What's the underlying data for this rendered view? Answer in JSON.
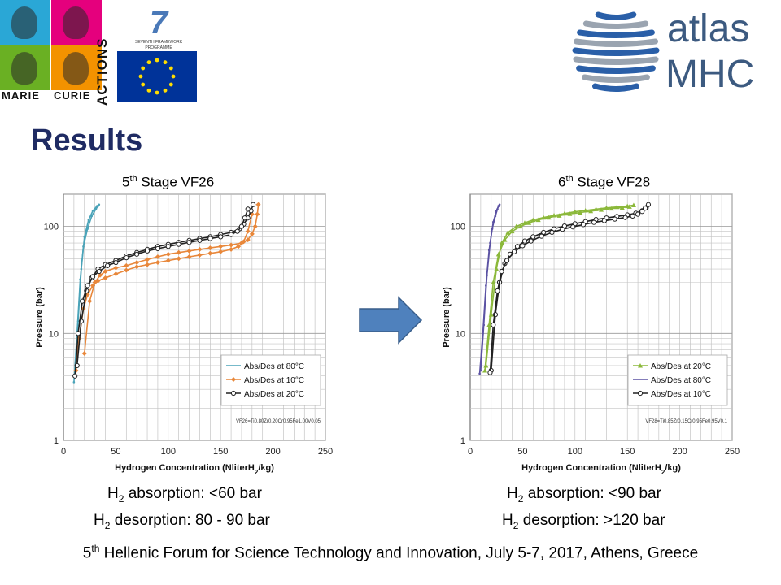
{
  "header": {
    "left_logo": {
      "words": [
        "MARIE",
        "CURIE",
        "ACTIONS"
      ],
      "fp7_caption": [
        "SEVENTH FRAMEWORK",
        "PROGRAMME"
      ],
      "tile_colors": [
        "#2aa7d6",
        "#e5007d",
        "#6ab023",
        "#f39200"
      ],
      "eu_blue": "#003399",
      "eu_star": "#ffdd00"
    },
    "right_logo": {
      "line1": "atlas",
      "line2": "MHC",
      "ring_colors": [
        "#2a5fa8",
        "#9aa4b0"
      ]
    }
  },
  "slide": {
    "title": "Results"
  },
  "left_panel": {
    "title_prefix": "5",
    "title_sup": "th",
    "title_suffix": " Stage VF26",
    "caption1": {
      "pre": "H",
      "sub": "2",
      "post": " absorption: <60 bar"
    },
    "caption2": {
      "pre": "H",
      "sub": "2",
      "post": " desorption: 80 - 90 bar"
    }
  },
  "right_panel": {
    "title_prefix": "6",
    "title_sup": "th",
    "title_suffix": " Stage VF28",
    "caption1": {
      "pre": "H",
      "sub": "2",
      "post": " absorption: <90 bar"
    },
    "caption2": {
      "pre": "H",
      "sub": "2",
      "post": " desorption: >120 bar"
    }
  },
  "arrow": {
    "color": "#4f81bd",
    "stroke": "#385d8a"
  },
  "footer": {
    "prefix": "5",
    "sup": "th",
    "text": " Hellenic Forum for Science Technology and Innovation, July 5-7, 2017, Athens, Greece"
  },
  "chart_data": [
    {
      "type": "scatter",
      "title": "5th Stage VF26",
      "xlabel_parts": {
        "pre": "Hydrogen Concentration (NliterH",
        "sub": "2",
        "post": "/kg)"
      },
      "ylabel": "Pressure (bar)",
      "xlim": [
        0,
        250
      ],
      "ylim": [
        1,
        200
      ],
      "yscale": "log",
      "xticks": [
        0,
        50,
        100,
        150,
        200,
        250
      ],
      "yticks": [
        1,
        10,
        100
      ],
      "grid": true,
      "legend_position": "bottom-right",
      "annotation": "VF26=Ti0.80Zr0.20Cr0.95Fe1.00V0.05",
      "series": [
        {
          "name": "Abs/Des at 80°C",
          "color": "#4aa3b8",
          "marker": "line",
          "absorption": {
            "x": [
              11,
              14,
              17,
              20,
              24,
              28,
              32,
              34
            ],
            "y": [
              4.5,
              13,
              40,
              80,
              115,
              140,
              155,
              160
            ]
          },
          "desorption": {
            "x": [
              10,
              13,
              16,
              19,
              23,
              27,
              31,
              33
            ],
            "y": [
              3.5,
              10,
              32,
              65,
              95,
              125,
              145,
              155
            ]
          }
        },
        {
          "name": "Abs/Des at 10°C",
          "color": "#e8873a",
          "marker": "diamond",
          "absorption": {
            "x": [
              20,
              25,
              30,
              35,
              40,
              50,
              60,
              70,
              80,
              90,
              100,
              110,
              120,
              130,
              140,
              150,
              160,
              170,
              176,
              180,
              183,
              185,
              186
            ],
            "y": [
              6.5,
              20,
              30,
              35,
              38,
              41,
              43,
              46,
              49,
              52,
              55,
              57,
              59,
              61,
              63,
              65,
              67,
              70,
              75,
              85,
              100,
              130,
              160
            ]
          },
          "desorption": {
            "x": [
              12,
              15,
              19,
              23,
              28,
              33,
              40,
              50,
              60,
              70,
              80,
              90,
              100,
              110,
              120,
              130,
              140,
              150,
              160,
              167,
              172,
              176,
              180
            ],
            "y": [
              4.5,
              9,
              17,
              23,
              28,
              31,
              33,
              36,
              39,
              42,
              44,
              46,
              48,
              50,
              52,
              54,
              56,
              58,
              61,
              65,
              72,
              90,
              130
            ]
          }
        },
        {
          "name": "Abs/Des at 20°C",
          "color": "#222222",
          "marker": "circle",
          "absorption": {
            "x": [
              13,
              17,
              22,
              27,
              33,
              40,
              50,
              60,
              70,
              80,
              90,
              100,
              110,
              120,
              130,
              140,
              150,
              160,
              168,
              172,
              176,
              179,
              181
            ],
            "y": [
              5,
              13,
              25,
              33,
              40,
              44,
              48,
              53,
              57,
              61,
              65,
              68,
              71,
              74,
              77,
              80,
              84,
              88,
              95,
              105,
              120,
              140,
              160
            ]
          },
          "desorption": {
            "x": [
              11,
              14,
              18,
              23,
              28,
              34,
              42,
              50,
              60,
              70,
              80,
              90,
              100,
              110,
              120,
              130,
              140,
              150,
              160,
              166,
              170,
              173,
              176
            ],
            "y": [
              4,
              10,
              20,
              28,
              34,
              38,
              43,
              46,
              51,
              55,
              59,
              62,
              65,
              68,
              71,
              74,
              77,
              80,
              84,
              90,
              100,
              120,
              145
            ]
          }
        }
      ]
    },
    {
      "type": "scatter",
      "title": "6th Stage VF28",
      "xlabel_parts": {
        "pre": "Hydrogen Concentration (NliterH",
        "sub": "2",
        "post": "/kg)"
      },
      "ylabel": "Pressure (bar)",
      "xlim": [
        0,
        250
      ],
      "ylim": [
        1,
        200
      ],
      "yscale": "log",
      "xticks": [
        0,
        50,
        100,
        150,
        200,
        250
      ],
      "yticks": [
        1,
        10,
        100
      ],
      "grid": true,
      "legend_position": "bottom-right",
      "annotation": "VF28=Ti0.85Zr0.15Cr0.95Fe0.95V0.1",
      "series": [
        {
          "name": "Abs/Des at 20°C",
          "color": "#8bb83a",
          "marker": "triangle",
          "absorption": {
            "x": [
              15,
              20,
              25,
              30,
              36,
              44,
              52,
              60,
              70,
              80,
              90,
              100,
              110,
              120,
              130,
              140,
              150,
              156
            ],
            "y": [
              5,
              15,
              40,
              70,
              88,
              100,
              108,
              115,
              121,
              127,
              132,
              137,
              141,
              145,
              149,
              152,
              155,
              158
            ]
          },
          "desorption": {
            "x": [
              14,
              18,
              22,
              27,
              33,
              40,
              48,
              56,
              65,
              75,
              85,
              95,
              105,
              115,
              125,
              135,
              145,
              152
            ],
            "y": [
              4.5,
              12,
              30,
              55,
              75,
              90,
              100,
              108,
              115,
              121,
              126,
              131,
              135,
              139,
              143,
              147,
              150,
              153
            ]
          }
        },
        {
          "name": "Abs/Des at 80°C",
          "color": "#5b52a3",
          "marker": "line",
          "absorption": {
            "x": [
              10,
              13,
              16,
              19,
              22,
              25,
              27,
              28
            ],
            "y": [
              4.5,
              12,
              35,
              70,
              110,
              140,
              155,
              160
            ]
          },
          "desorption": {
            "x": [
              9,
              12,
              15,
              18,
              21,
              24,
              26,
              27
            ],
            "y": [
              4.2,
              10,
              28,
              60,
              95,
              125,
              145,
              155
            ]
          }
        },
        {
          "name": "Abs/Des at 10°C",
          "color": "#222222",
          "marker": "circle",
          "absorption": {
            "x": [
              20,
              24,
              28,
              33,
              38,
              45,
              52,
              60,
              70,
              80,
              90,
              100,
              110,
              120,
              130,
              140,
              150,
              158,
              164,
              168,
              170
            ],
            "y": [
              4.5,
              15,
              30,
              45,
              55,
              65,
              73,
              80,
              88,
              95,
              101,
              106,
              111,
              116,
              120,
              124,
              128,
              133,
              140,
              150,
              160
            ]
          },
          "desorption": {
            "x": [
              19,
              22,
              26,
              30,
              35,
              42,
              50,
              58,
              68,
              78,
              88,
              98,
              108,
              118,
              128,
              138,
              148,
              155,
              160,
              164,
              167
            ],
            "y": [
              4.3,
              12,
              25,
              38,
              48,
              58,
              66,
              73,
              81,
              88,
              94,
              99,
              104,
              109,
              113,
              117,
              121,
              125,
              130,
              138,
              148
            ]
          }
        }
      ]
    }
  ]
}
